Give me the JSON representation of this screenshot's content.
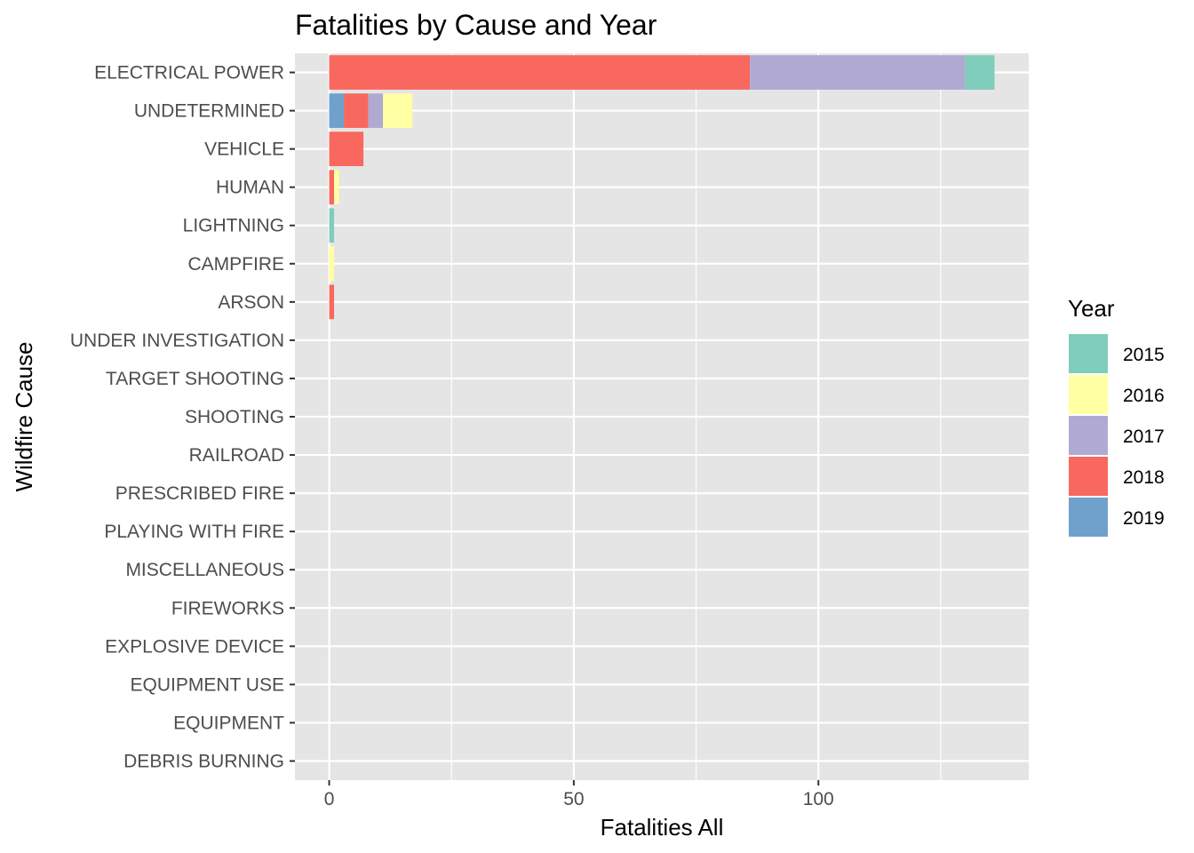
{
  "chart_data": {
    "type": "bar",
    "orientation": "horizontal",
    "stacked": true,
    "title": "Fatalities by Cause and Year",
    "xlabel": "Fatalities All",
    "ylabel": "Wildfire Cause",
    "xlim": [
      -7,
      143
    ],
    "x_ticks": [
      0,
      50,
      100
    ],
    "x_minor_ticks": [
      25,
      75,
      125
    ],
    "grid": true,
    "categories": [
      "ELECTRICAL POWER",
      "UNDETERMINED",
      "VEHICLE",
      "HUMAN",
      "LIGHTNING",
      "CAMPFIRE",
      "ARSON",
      "UNDER INVESTIGATION",
      "TARGET SHOOTING",
      "SHOOTING",
      "RAILROAD",
      "PRESCRIBED FIRE",
      "PLAYING WITH FIRE",
      "MISCELLANEOUS",
      "FIREWORKS",
      "EXPLOSIVE DEVICE",
      "EQUIPMENT USE",
      "EQUIPMENT",
      "DEBRIS BURNING"
    ],
    "stack_order": [
      "2019",
      "2018",
      "2017",
      "2016",
      "2015"
    ],
    "series": [
      {
        "name": "2015",
        "color": "#7FCDBB",
        "values": [
          6,
          0,
          0,
          0,
          1,
          0,
          0,
          0,
          0,
          0,
          0,
          0,
          0,
          0,
          0,
          0,
          0,
          0,
          0
        ]
      },
      {
        "name": "2016",
        "color": "#FFFFA3",
        "values": [
          0,
          6,
          0,
          1,
          0,
          1,
          0,
          0,
          0,
          0,
          0,
          0,
          0,
          0,
          0,
          0,
          0,
          0,
          0
        ]
      },
      {
        "name": "2017",
        "color": "#B0AAD2",
        "values": [
          44,
          3,
          0,
          0,
          0,
          0,
          0,
          0,
          0,
          0,
          0,
          0,
          0,
          0,
          0,
          0,
          0,
          0,
          0
        ]
      },
      {
        "name": "2018",
        "color": "#F8685F",
        "values": [
          86,
          5,
          7,
          1,
          0,
          0,
          1,
          0,
          0,
          0,
          0,
          0,
          0,
          0,
          0,
          0,
          0,
          0,
          0
        ]
      },
      {
        "name": "2019",
        "color": "#6FA1CC",
        "values": [
          0,
          3,
          0,
          0,
          0,
          0,
          0,
          0,
          0,
          0,
          0,
          0,
          0,
          0,
          0,
          0,
          0,
          0,
          0
        ]
      }
    ],
    "legend": {
      "title": "Year",
      "position": "right"
    },
    "colors": {
      "panel_background": "#E5E5E5",
      "grid": "#FFFFFF",
      "tick_text": "#4D4D4D"
    }
  }
}
